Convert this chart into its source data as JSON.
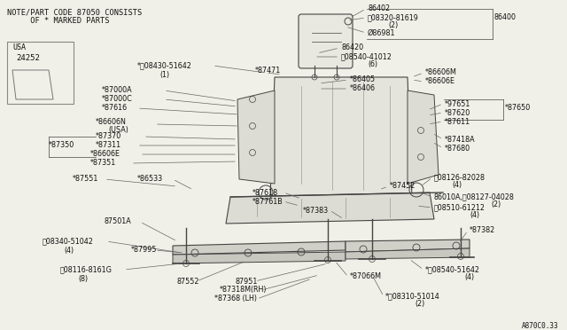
{
  "bg_color": "#f0f0e8",
  "text_color": "#111111",
  "line_color": "#444444",
  "note1": "NOTE/PART CODE 87050 CONSISTS",
  "note2": "     OF * MARKED PARTS",
  "diagram_code": "A870C0.33",
  "usa_label": "USA",
  "usa_num": "24252",
  "figsize": [
    6.4,
    3.72
  ],
  "dpi": 100
}
